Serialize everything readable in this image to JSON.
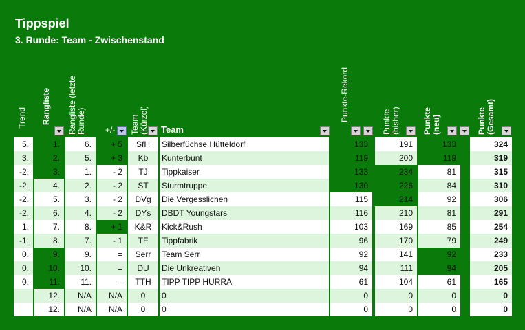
{
  "title": "Tippspiel",
  "subtitle": "3. Runde: Team - Zwischenstand",
  "headers": {
    "trend": "Trend",
    "rangliste": "Rangliste",
    "rangliste_letzte": "Rangliste (letzte Runde)",
    "diff": "+/-",
    "team_kuerzel": "Team (Kürzel)",
    "team": "Team",
    "rekord": "Punkte-Rekord",
    "bisher": "Punkte (bisher)",
    "neu": "Punkte (neu)",
    "gesamt": "Punkte (Gesamt)"
  },
  "colors": {
    "background": "#0a7a0a",
    "row_white": "#ffffff",
    "row_light": "#dcf5dc"
  },
  "rows": [
    {
      "trend": "5.",
      "rank": "1.",
      "prev": "6.",
      "diff": "+ 5",
      "code": "SfH",
      "team": "Silberfüchse Hütteldorf",
      "rekord": "133",
      "bisher": "191",
      "neu": "133",
      "gesamt": "324"
    },
    {
      "trend": "3.",
      "rank": "2.",
      "prev": "5.",
      "diff": "+ 3",
      "code": "Kb",
      "team": "Kunterbunt",
      "rekord": "119",
      "bisher": "200",
      "neu": "119",
      "gesamt": "319"
    },
    {
      "trend": "-2.",
      "rank": "3.",
      "prev": "1.",
      "diff": "- 2",
      "code": "TJ",
      "team": "Tippkaiser",
      "rekord": "133",
      "bisher": "234",
      "neu": "81",
      "gesamt": "315"
    },
    {
      "trend": "-2.",
      "rank": "4.",
      "prev": "2.",
      "diff": "- 2",
      "code": "ST",
      "team": "Sturmtruppe",
      "rekord": "130",
      "bisher": "226",
      "neu": "84",
      "gesamt": "310"
    },
    {
      "trend": "-2.",
      "rank": "5.",
      "prev": "3.",
      "diff": "- 2",
      "code": "DVg",
      "team": "Die Vergesslichen",
      "rekord": "115",
      "bisher": "214",
      "neu": "92",
      "gesamt": "306"
    },
    {
      "trend": "-2.",
      "rank": "6.",
      "prev": "4.",
      "diff": "- 2",
      "code": "DYs",
      "team": "DBDT Youngstars",
      "rekord": "116",
      "bisher": "210",
      "neu": "81",
      "gesamt": "291"
    },
    {
      "trend": "1.",
      "rank": "7.",
      "prev": "8.",
      "diff": "+ 1",
      "code": "K&R",
      "team": "Kick&Rush",
      "rekord": "103",
      "bisher": "169",
      "neu": "85",
      "gesamt": "254"
    },
    {
      "trend": "-1.",
      "rank": "8.",
      "prev": "7.",
      "diff": "- 1",
      "code": "TF",
      "team": "Tippfabrik",
      "rekord": "96",
      "bisher": "170",
      "neu": "79",
      "gesamt": "249"
    },
    {
      "trend": "0.",
      "rank": "9.",
      "prev": "9.",
      "diff": "=",
      "code": "Serr",
      "team": "Team Serr",
      "rekord": "92",
      "bisher": "141",
      "neu": "92",
      "gesamt": "233"
    },
    {
      "trend": "0.",
      "rank": "10.",
      "prev": "10.",
      "diff": "=",
      "code": "DU",
      "team": "Die Unkreativen",
      "rekord": "94",
      "bisher": "111",
      "neu": "94",
      "gesamt": "205"
    },
    {
      "trend": "0.",
      "rank": "11.",
      "prev": "11.",
      "diff": "=",
      "code": "TTH",
      "team": "TIPP TIPP HURRA",
      "rekord": "61",
      "bisher": "104",
      "neu": "61",
      "gesamt": "165"
    },
    {
      "trend": "",
      "rank": "12.",
      "prev": "N/A",
      "diff": "N/A",
      "code": "0",
      "team": "0",
      "rekord": "0",
      "bisher": "0",
      "neu": "0",
      "gesamt": "0"
    },
    {
      "trend": "",
      "rank": "12.",
      "prev": "N/A",
      "diff": "N/A",
      "code": "0",
      "team": "0",
      "rekord": "0",
      "bisher": "0",
      "neu": "0",
      "gesamt": "0"
    }
  ]
}
